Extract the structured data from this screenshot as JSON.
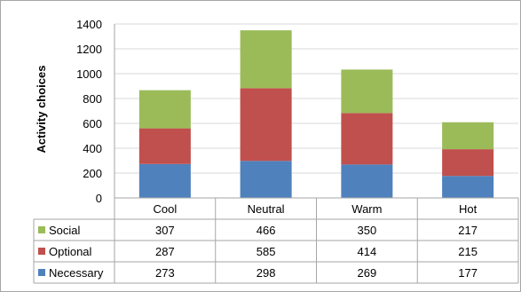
{
  "chart_data": {
    "type": "bar",
    "stacked": true,
    "title": "",
    "xlabel": "",
    "ylabel": "Activity choices",
    "ylim": [
      0,
      1400
    ],
    "yticks": [
      0,
      200,
      400,
      600,
      800,
      1000,
      1200,
      1400
    ],
    "grid": true,
    "legend": "data table, left of rows",
    "categories": [
      "Cool",
      "Neutral",
      "Warm",
      "Hot"
    ],
    "series": [
      {
        "name": "Necessary",
        "color": "#4f81bd",
        "values": [
          273,
          298,
          269,
          177
        ]
      },
      {
        "name": "Optional",
        "color": "#c0504d",
        "values": [
          287,
          585,
          414,
          215
        ]
      },
      {
        "name": "Social",
        "color": "#9bbb59",
        "values": [
          307,
          466,
          350,
          217
        ]
      }
    ],
    "table_row_order": [
      "Social",
      "Optional",
      "Necessary"
    ]
  }
}
